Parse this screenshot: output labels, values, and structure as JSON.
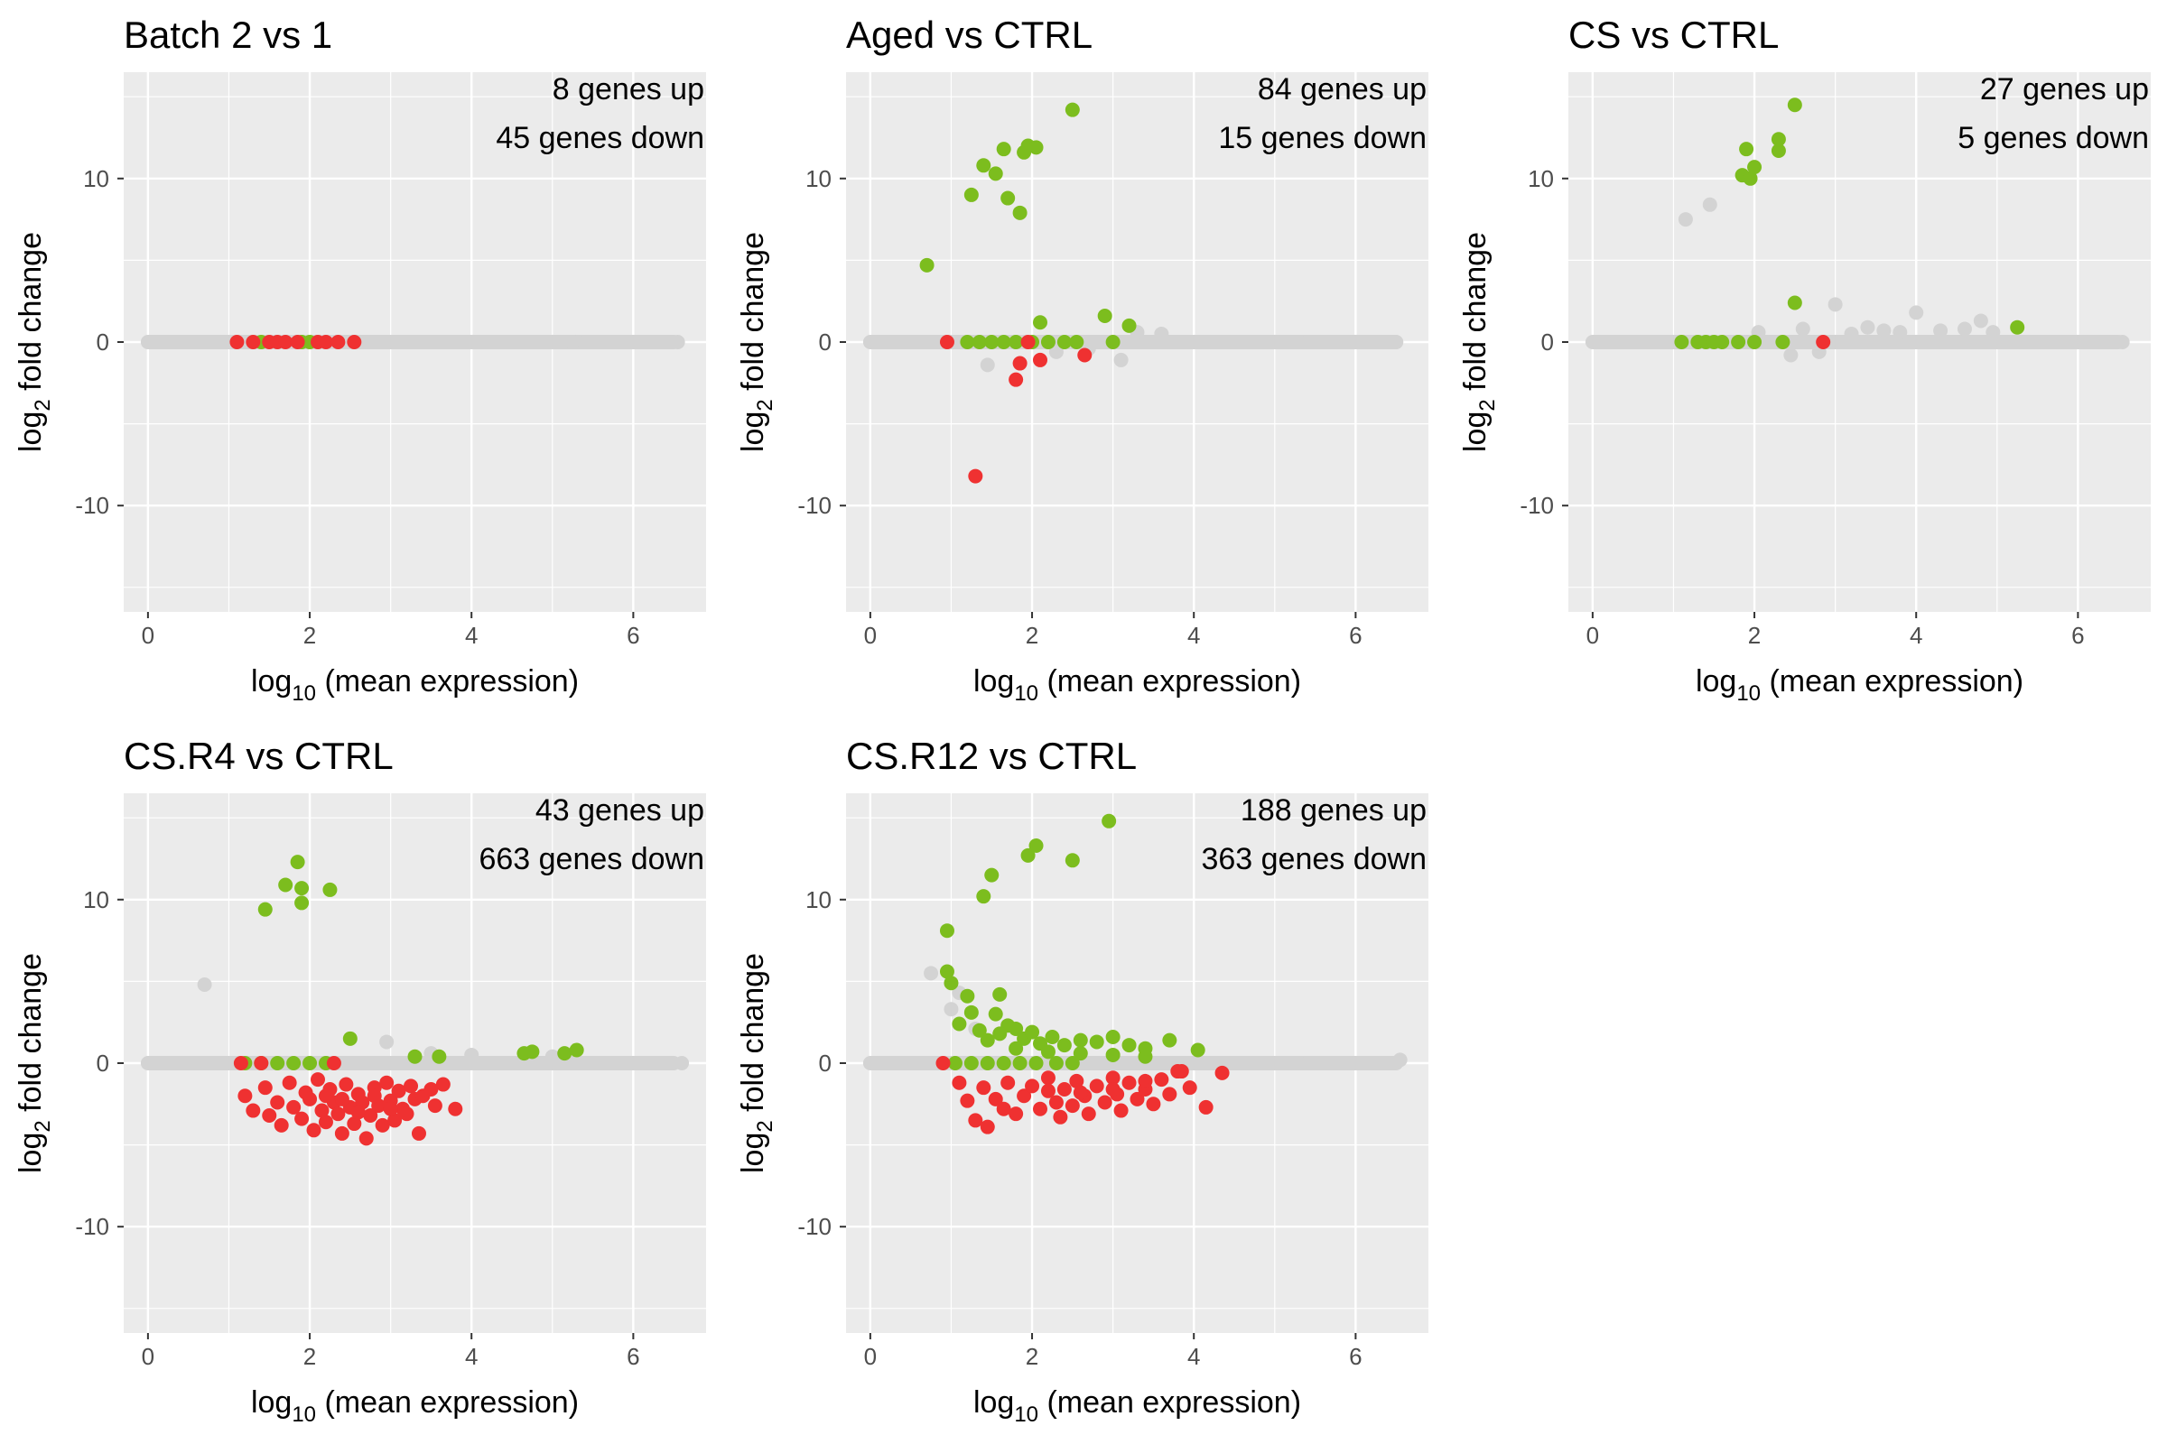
{
  "colors": {
    "panel_bg": "#ebebeb",
    "grid_major": "#ffffff",
    "not_significant": "#d3d3d3",
    "up": "#7cbd1e",
    "down": "#ef3131",
    "tick_text": "#4d4d4d"
  },
  "chart_data": [
    {
      "type": "scatter",
      "title": "Batch 2 vs 1",
      "annotation_up": "8 genes up",
      "annotation_down": "45 genes down",
      "xlabel_main": "log",
      "xlabel_sub": "10",
      "xlabel_rest": " (mean expression)",
      "ylabel_main": "log",
      "ylabel_sub": "2",
      "ylabel_rest": " fold change",
      "xlim": [
        -0.3,
        6.9
      ],
      "ylim": [
        -16.5,
        16.5
      ],
      "xticks": [
        0,
        2,
        4,
        6
      ],
      "yticks": [
        -10,
        0,
        10
      ],
      "xticklabels": [
        "0",
        "2",
        "4",
        "6"
      ],
      "yticklabels": [
        "-10",
        "0",
        "10"
      ],
      "grey_band": [
        [
          0.0,
          6.5,
          0.0
        ]
      ],
      "grey_points": [
        [
          5.1,
          0
        ],
        [
          5.25,
          0
        ],
        [
          5.4,
          0
        ],
        [
          5.8,
          0
        ],
        [
          6.0,
          0
        ],
        [
          6.4,
          0
        ],
        [
          6.55,
          0
        ]
      ],
      "green_points": [
        [
          1.4,
          0
        ],
        [
          1.9,
          0
        ],
        [
          2.0,
          0
        ]
      ],
      "red_points": [
        [
          1.1,
          0
        ],
        [
          1.3,
          0
        ],
        [
          1.5,
          0
        ],
        [
          1.6,
          0
        ],
        [
          1.7,
          0
        ],
        [
          1.85,
          0
        ],
        [
          2.1,
          0
        ],
        [
          2.2,
          0
        ],
        [
          2.35,
          0
        ],
        [
          2.55,
          0
        ]
      ]
    },
    {
      "type": "scatter",
      "title": "Aged vs CTRL",
      "annotation_up": "84 genes up",
      "annotation_down": "15 genes down",
      "xlabel_main": "log",
      "xlabel_sub": "10",
      "xlabel_rest": " (mean expression)",
      "ylabel_main": "log",
      "ylabel_sub": "2",
      "ylabel_rest": " fold change",
      "xlim": [
        -0.3,
        6.9
      ],
      "ylim": [
        -16.5,
        16.5
      ],
      "xticks": [
        0,
        2,
        4,
        6
      ],
      "yticks": [
        -10,
        0,
        10
      ],
      "xticklabels": [
        "0",
        "2",
        "4",
        "6"
      ],
      "yticklabels": [
        "-10",
        "0",
        "10"
      ],
      "grey_band": [
        [
          0.0,
          6.5,
          0.0
        ]
      ],
      "grey_points": [
        [
          1.45,
          -1.4
        ],
        [
          2.3,
          -0.6
        ],
        [
          2.7,
          -0.4
        ],
        [
          3.1,
          -1.1
        ],
        [
          3.3,
          0.6
        ],
        [
          3.6,
          0.5
        ],
        [
          5.2,
          0
        ],
        [
          5.4,
          0
        ],
        [
          6.0,
          0
        ],
        [
          6.5,
          0
        ]
      ],
      "green_points": [
        [
          0.7,
          4.7
        ],
        [
          1.25,
          9.0
        ],
        [
          1.4,
          10.8
        ],
        [
          1.55,
          10.3
        ],
        [
          1.65,
          11.8
        ],
        [
          1.7,
          8.8
        ],
        [
          1.85,
          7.9
        ],
        [
          1.9,
          11.6
        ],
        [
          1.95,
          12.0
        ],
        [
          2.05,
          11.9
        ],
        [
          2.5,
          14.2
        ],
        [
          2.1,
          1.2
        ],
        [
          2.9,
          1.6
        ],
        [
          3.2,
          1.0
        ],
        [
          3.0,
          0.0
        ],
        [
          1.2,
          0
        ],
        [
          1.35,
          0
        ],
        [
          1.5,
          0
        ],
        [
          1.65,
          0
        ],
        [
          1.8,
          0
        ],
        [
          2.0,
          0
        ],
        [
          2.2,
          0
        ],
        [
          2.4,
          0
        ],
        [
          2.55,
          0
        ]
      ],
      "red_points": [
        [
          1.3,
          -8.2
        ],
        [
          1.8,
          -2.3
        ],
        [
          1.85,
          -1.3
        ],
        [
          2.1,
          -1.1
        ],
        [
          2.65,
          -0.8
        ],
        [
          0.95,
          0
        ],
        [
          1.95,
          0
        ]
      ]
    },
    {
      "type": "scatter",
      "title": "CS vs CTRL",
      "annotation_up": "27 genes up",
      "annotation_down": "5 genes down",
      "xlabel_main": "log",
      "xlabel_sub": "10",
      "xlabel_rest": " (mean expression)",
      "ylabel_main": "log",
      "ylabel_sub": "2",
      "ylabel_rest": " fold change",
      "xlim": [
        -0.3,
        6.9
      ],
      "ylim": [
        -16.5,
        16.5
      ],
      "xticks": [
        0,
        2,
        4,
        6
      ],
      "yticks": [
        -10,
        0,
        10
      ],
      "xticklabels": [
        "0",
        "2",
        "4",
        "6"
      ],
      "yticklabels": [
        "-10",
        "0",
        "10"
      ],
      "grey_band": [
        [
          0.0,
          6.5,
          0.0
        ]
      ],
      "grey_points": [
        [
          1.15,
          7.5
        ],
        [
          1.45,
          8.4
        ],
        [
          2.05,
          0.6
        ],
        [
          2.6,
          0.8
        ],
        [
          3.0,
          2.3
        ],
        [
          3.2,
          0.5
        ],
        [
          3.4,
          0.9
        ],
        [
          3.6,
          0.7
        ],
        [
          3.8,
          0.6
        ],
        [
          4.0,
          1.8
        ],
        [
          4.3,
          0.7
        ],
        [
          4.6,
          0.8
        ],
        [
          4.8,
          1.3
        ],
        [
          4.95,
          0.6
        ],
        [
          2.45,
          -0.8
        ],
        [
          2.8,
          -0.6
        ],
        [
          5.5,
          0
        ],
        [
          5.9,
          0
        ],
        [
          6.3,
          0
        ],
        [
          6.55,
          0
        ]
      ],
      "green_points": [
        [
          1.85,
          10.2
        ],
        [
          1.9,
          11.8
        ],
        [
          1.95,
          10.0
        ],
        [
          2.0,
          10.7
        ],
        [
          2.3,
          11.7
        ],
        [
          2.3,
          12.4
        ],
        [
          2.5,
          14.5
        ],
        [
          2.5,
          2.4
        ],
        [
          5.25,
          0.9
        ],
        [
          1.1,
          0
        ],
        [
          1.3,
          0
        ],
        [
          1.4,
          0
        ],
        [
          1.5,
          0
        ],
        [
          1.6,
          0
        ],
        [
          1.8,
          0
        ],
        [
          2.0,
          0
        ],
        [
          2.35,
          0
        ]
      ],
      "red_points": [
        [
          2.85,
          0
        ]
      ]
    },
    {
      "type": "scatter",
      "title": "CS.R4 vs CTRL",
      "annotation_up": "43 genes up",
      "annotation_down": "663 genes down",
      "xlabel_main": "log",
      "xlabel_sub": "10",
      "xlabel_rest": " (mean expression)",
      "ylabel_main": "log",
      "ylabel_sub": "2",
      "ylabel_rest": " fold change",
      "xlim": [
        -0.3,
        6.9
      ],
      "ylim": [
        -16.5,
        16.5
      ],
      "xticks": [
        0,
        2,
        4,
        6
      ],
      "yticks": [
        -10,
        0,
        10
      ],
      "xticklabels": [
        "0",
        "2",
        "4",
        "6"
      ],
      "yticklabels": [
        "-10",
        "0",
        "10"
      ],
      "grey_band": [
        [
          0.0,
          6.5,
          0.0
        ]
      ],
      "grey_points": [
        [
          0.7,
          4.8
        ],
        [
          2.95,
          1.3
        ],
        [
          3.5,
          0.6
        ],
        [
          4.0,
          0.5
        ],
        [
          5.0,
          0.4
        ],
        [
          5.6,
          0
        ],
        [
          6.0,
          0
        ],
        [
          6.45,
          0
        ],
        [
          6.6,
          0
        ]
      ],
      "green_points": [
        [
          1.45,
          9.4
        ],
        [
          1.7,
          10.9
        ],
        [
          1.85,
          12.3
        ],
        [
          1.9,
          10.7
        ],
        [
          1.9,
          9.8
        ],
        [
          2.25,
          10.6
        ],
        [
          2.5,
          1.5
        ],
        [
          3.3,
          0.4
        ],
        [
          3.6,
          0.4
        ],
        [
          4.65,
          0.6
        ],
        [
          4.75,
          0.7
        ],
        [
          5.15,
          0.6
        ],
        [
          5.3,
          0.8
        ],
        [
          1.2,
          0
        ],
        [
          1.4,
          0
        ],
        [
          1.6,
          0
        ],
        [
          1.8,
          0
        ],
        [
          2.0,
          0
        ],
        [
          2.2,
          0
        ]
      ],
      "red_points": [
        [
          1.15,
          0
        ],
        [
          1.4,
          0
        ],
        [
          2.3,
          0
        ],
        [
          1.2,
          -2.0
        ],
        [
          1.3,
          -2.9
        ],
        [
          1.45,
          -1.5
        ],
        [
          1.5,
          -3.2
        ],
        [
          1.6,
          -2.4
        ],
        [
          1.65,
          -3.8
        ],
        [
          1.75,
          -1.2
        ],
        [
          1.8,
          -2.7
        ],
        [
          1.9,
          -3.4
        ],
        [
          1.95,
          -1.8
        ],
        [
          2.0,
          -2.2
        ],
        [
          2.05,
          -4.1
        ],
        [
          2.1,
          -1.0
        ],
        [
          2.15,
          -2.9
        ],
        [
          2.2,
          -3.6
        ],
        [
          2.25,
          -1.6
        ],
        [
          2.3,
          -2.4
        ],
        [
          2.35,
          -3.1
        ],
        [
          2.4,
          -4.3
        ],
        [
          2.45,
          -1.3
        ],
        [
          2.5,
          -2.7
        ],
        [
          2.55,
          -3.7
        ],
        [
          2.6,
          -1.9
        ],
        [
          2.65,
          -2.4
        ],
        [
          2.7,
          -4.6
        ],
        [
          2.75,
          -3.2
        ],
        [
          2.8,
          -1.5
        ],
        [
          2.85,
          -2.6
        ],
        [
          2.9,
          -3.8
        ],
        [
          2.95,
          -1.2
        ],
        [
          3.0,
          -2.3
        ],
        [
          3.05,
          -3.5
        ],
        [
          3.1,
          -1.7
        ],
        [
          3.15,
          -2.8
        ],
        [
          3.2,
          -3.1
        ],
        [
          3.25,
          -1.4
        ],
        [
          3.3,
          -2.2
        ],
        [
          3.35,
          -4.3
        ],
        [
          3.4,
          -2.0
        ],
        [
          3.5,
          -1.6
        ],
        [
          3.55,
          -2.6
        ],
        [
          3.65,
          -1.3
        ],
        [
          3.8,
          -2.8
        ],
        [
          2.2,
          -2.0
        ],
        [
          2.6,
          -3.0
        ],
        [
          3.0,
          -2.8
        ],
        [
          2.4,
          -2.2
        ],
        [
          2.8,
          -2.0
        ]
      ]
    },
    {
      "type": "scatter",
      "title": "CS.R12 vs CTRL",
      "annotation_up": "188 genes up",
      "annotation_down": "363 genes down",
      "xlabel_main": "log",
      "xlabel_sub": "10",
      "xlabel_rest": " (mean expression)",
      "ylabel_main": "log",
      "ylabel_sub": "2",
      "ylabel_rest": " fold change",
      "xlim": [
        -0.3,
        6.9
      ],
      "ylim": [
        -16.5,
        16.5
      ],
      "xticks": [
        0,
        2,
        4,
        6
      ],
      "yticks": [
        -10,
        0,
        10
      ],
      "xticklabels": [
        "0",
        "2",
        "4",
        "6"
      ],
      "yticklabels": [
        "-10",
        "0",
        "10"
      ],
      "grey_band": [
        [
          0.0,
          6.5,
          0.0
        ]
      ],
      "grey_points": [
        [
          0.75,
          5.5
        ],
        [
          1.1,
          4.3
        ],
        [
          1.0,
          3.3
        ],
        [
          1.3,
          2.1
        ],
        [
          5.0,
          0
        ],
        [
          5.4,
          0
        ],
        [
          5.8,
          0
        ],
        [
          6.3,
          0
        ],
        [
          6.55,
          0.2
        ]
      ],
      "green_points": [
        [
          0.95,
          8.1
        ],
        [
          0.95,
          5.6
        ],
        [
          1.0,
          4.9
        ],
        [
          1.2,
          4.1
        ],
        [
          1.25,
          3.1
        ],
        [
          1.4,
          10.2
        ],
        [
          1.5,
          11.5
        ],
        [
          1.6,
          4.2
        ],
        [
          1.55,
          3.0
        ],
        [
          1.7,
          2.3
        ],
        [
          1.95,
          12.7
        ],
        [
          2.05,
          13.3
        ],
        [
          2.5,
          12.4
        ],
        [
          2.95,
          14.8
        ],
        [
          1.1,
          2.4
        ],
        [
          1.35,
          2.0
        ],
        [
          1.45,
          1.4
        ],
        [
          1.6,
          1.8
        ],
        [
          1.8,
          2.1
        ],
        [
          1.9,
          1.5
        ],
        [
          2.0,
          1.9
        ],
        [
          2.1,
          1.2
        ],
        [
          2.25,
          1.6
        ],
        [
          2.4,
          1.1
        ],
        [
          2.6,
          1.4
        ],
        [
          2.8,
          1.3
        ],
        [
          3.0,
          1.6
        ],
        [
          3.2,
          1.1
        ],
        [
          3.4,
          0.9
        ],
        [
          3.7,
          1.4
        ],
        [
          4.05,
          0.8
        ],
        [
          1.8,
          0.9
        ],
        [
          2.2,
          0.7
        ],
        [
          2.6,
          0.6
        ],
        [
          3.0,
          0.5
        ],
        [
          3.4,
          0.4
        ],
        [
          1.05,
          0
        ],
        [
          1.25,
          0
        ],
        [
          1.45,
          0
        ],
        [
          1.65,
          0
        ],
        [
          1.85,
          0
        ],
        [
          2.05,
          0
        ],
        [
          2.3,
          0
        ],
        [
          2.5,
          0
        ]
      ],
      "red_points": [
        [
          0.9,
          0
        ],
        [
          1.1,
          -1.2
        ],
        [
          1.2,
          -2.3
        ],
        [
          1.3,
          -3.5
        ],
        [
          1.4,
          -1.5
        ],
        [
          1.45,
          -3.9
        ],
        [
          1.55,
          -2.2
        ],
        [
          1.65,
          -2.8
        ],
        [
          1.7,
          -1.2
        ],
        [
          1.8,
          -3.1
        ],
        [
          1.9,
          -2.0
        ],
        [
          2.0,
          -1.4
        ],
        [
          2.1,
          -2.8
        ],
        [
          2.2,
          -0.9
        ],
        [
          2.3,
          -2.4
        ],
        [
          2.35,
          -3.3
        ],
        [
          2.4,
          -1.6
        ],
        [
          2.5,
          -2.6
        ],
        [
          2.55,
          -1.1
        ],
        [
          2.65,
          -2.0
        ],
        [
          2.7,
          -3.1
        ],
        [
          2.8,
          -1.4
        ],
        [
          2.9,
          -2.4
        ],
        [
          3.0,
          -0.9
        ],
        [
          3.05,
          -1.9
        ],
        [
          3.1,
          -2.9
        ],
        [
          3.2,
          -1.2
        ],
        [
          3.3,
          -2.2
        ],
        [
          3.4,
          -1.6
        ],
        [
          3.5,
          -2.5
        ],
        [
          3.6,
          -1.0
        ],
        [
          3.7,
          -1.9
        ],
        [
          3.85,
          -0.5
        ],
        [
          3.95,
          -1.5
        ],
        [
          4.15,
          -2.7
        ],
        [
          4.35,
          -0.6
        ],
        [
          2.2,
          -1.7
        ],
        [
          2.6,
          -1.8
        ],
        [
          3.0,
          -1.6
        ],
        [
          3.4,
          -1.1
        ],
        [
          3.8,
          -0.5
        ]
      ]
    }
  ]
}
